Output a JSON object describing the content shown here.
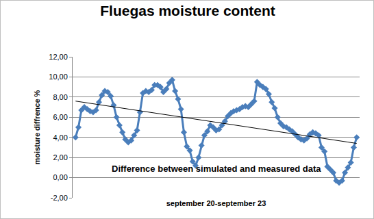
{
  "chart_data": {
    "type": "line",
    "title": "Fluegas moisture content",
    "subtitle": "Difference between simulated and measured data",
    "x_label": "september 20-september 23",
    "y_label": "moisture diffrence %",
    "categories": [
      null,
      null,
      null,
      null,
      null,
      null,
      null,
      null,
      null,
      null,
      null,
      null,
      null,
      null,
      null,
      null,
      null,
      null,
      null,
      null,
      null,
      null,
      null,
      null,
      null,
      null,
      null,
      null,
      null,
      null,
      null,
      null,
      null,
      null,
      null,
      null,
      null,
      null,
      null,
      null,
      null,
      null,
      null,
      null,
      null,
      null,
      null,
      null,
      null,
      null,
      null,
      null,
      null,
      null,
      null,
      null,
      null,
      null,
      null,
      null,
      null,
      null,
      null,
      null,
      null,
      null,
      null,
      null,
      null,
      null,
      null,
      null,
      null,
      null,
      null,
      null,
      null,
      null,
      null,
      null,
      null,
      null,
      null,
      null,
      null,
      null,
      null,
      null,
      null,
      null,
      null,
      null,
      null,
      null,
      null,
      null,
      null
    ],
    "series": [
      {
        "color": "#4a7ebb",
        "marker": "diamond",
        "line_style": "solid",
        "values": [
          4.0,
          5.0,
          6.7,
          7.0,
          6.8,
          6.6,
          6.5,
          6.7,
          7.5,
          8.2,
          8.6,
          8.5,
          8.1,
          7.2,
          6.0,
          5.2,
          4.5,
          3.8,
          3.5,
          3.7,
          4.2,
          4.7,
          6.5,
          8.4,
          8.6,
          8.5,
          8.7,
          9.2,
          9.2,
          9.0,
          8.5,
          8.8,
          9.4,
          9.7,
          8.6,
          7.8,
          6.8,
          4.5,
          3.1,
          2.7,
          1.6,
          1.2,
          2.0,
          3.2,
          4.2,
          4.6,
          5.2,
          5.0,
          4.7,
          4.8,
          5.2,
          5.6,
          6.1,
          6.4,
          6.6,
          6.7,
          6.8,
          7.0,
          7.1,
          7.0,
          7.3,
          7.6,
          9.5,
          9.2,
          9.0,
          8.8,
          8.3,
          7.5,
          6.9,
          6.0,
          5.4,
          5.1,
          5.0,
          4.8,
          4.6,
          4.3,
          4.0,
          3.8,
          3.7,
          3.9,
          4.3,
          4.5,
          4.4,
          4.2,
          3.0,
          2.6,
          1.1,
          0.8,
          0.5,
          -0.3,
          -0.5,
          -0.3,
          0.5,
          1.0,
          1.5,
          3.0,
          4.0
        ]
      },
      {
        "color": "#000000",
        "marker": "none",
        "line_style": "solid",
        "values": [
          7.6,
          null,
          null,
          null,
          null,
          null,
          null,
          null,
          null,
          null,
          null,
          null,
          null,
          null,
          null,
          null,
          null,
          null,
          null,
          null,
          null,
          null,
          null,
          null,
          null,
          null,
          null,
          null,
          null,
          null,
          null,
          null,
          null,
          null,
          null,
          null,
          null,
          null,
          null,
          null,
          null,
          null,
          null,
          null,
          null,
          null,
          null,
          null,
          null,
          null,
          null,
          null,
          null,
          null,
          null,
          null,
          null,
          null,
          null,
          null,
          null,
          null,
          null,
          null,
          null,
          null,
          null,
          null,
          null,
          null,
          null,
          null,
          null,
          null,
          null,
          null,
          null,
          null,
          null,
          null,
          null,
          null,
          null,
          null,
          null,
          null,
          null,
          null,
          null,
          null,
          null,
          null,
          null,
          null,
          null,
          null,
          3.4
        ]
      }
    ],
    "ylim": [
      -2,
      12
    ],
    "yticks": [
      {
        "value": -2,
        "label": "-2,00"
      },
      {
        "value": 0,
        "label": "0,00"
      },
      {
        "value": 2,
        "label": "2,00"
      },
      {
        "value": 4,
        "label": "4,00"
      },
      {
        "value": 6,
        "label": "6,00"
      },
      {
        "value": 8,
        "label": "8,00"
      },
      {
        "value": 10,
        "label": "10,00"
      },
      {
        "value": 12,
        "label": "12,00"
      }
    ],
    "grid": true,
    "tick_labels": "y"
  }
}
